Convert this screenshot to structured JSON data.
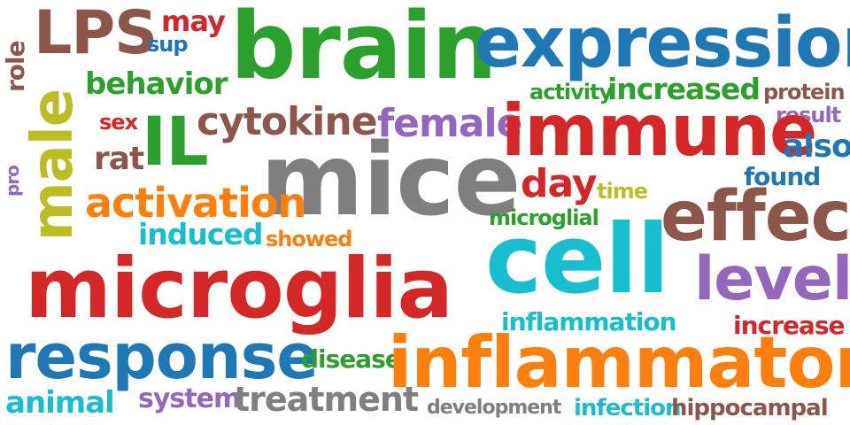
{
  "colors": {
    "blue": "#1f77b4",
    "orange": "#ff7f0e",
    "green": "#2ca02c",
    "red": "#d62728",
    "purple": "#9467bd",
    "brown": "#8c564b",
    "pink": "#e377c2",
    "gray": "#7f7f7f",
    "olive": "#bcbd22",
    "cyan": "#17becf"
  },
  "words": [
    {
      "text": "brain",
      "color": "green"
    },
    {
      "text": "expression",
      "color": "blue"
    },
    {
      "text": "LPS",
      "color": "brown"
    },
    {
      "text": "may",
      "color": "red"
    },
    {
      "text": "sup",
      "color": "blue"
    },
    {
      "text": "role",
      "color": "brown"
    },
    {
      "text": "behavior",
      "color": "green"
    },
    {
      "text": "activity",
      "color": "green"
    },
    {
      "text": "increased",
      "color": "green"
    },
    {
      "text": "protein",
      "color": "brown"
    },
    {
      "text": "result",
      "color": "purple"
    },
    {
      "text": "male",
      "color": "olive"
    },
    {
      "text": "sex",
      "color": "red"
    },
    {
      "text": "IL",
      "color": "green"
    },
    {
      "text": "cytokine",
      "color": "brown"
    },
    {
      "text": "female",
      "color": "purple"
    },
    {
      "text": "immune",
      "color": "red"
    },
    {
      "text": "also",
      "color": "blue"
    },
    {
      "text": "rat",
      "color": "brown"
    },
    {
      "text": "mice",
      "color": "gray"
    },
    {
      "text": "found",
      "color": "blue"
    },
    {
      "text": "pro",
      "color": "purple"
    },
    {
      "text": "day",
      "color": "red"
    },
    {
      "text": "time",
      "color": "olive"
    },
    {
      "text": "activation",
      "color": "orange"
    },
    {
      "text": "effect",
      "color": "brown"
    },
    {
      "text": "microglial",
      "color": "green"
    },
    {
      "text": "induced",
      "color": "cyan"
    },
    {
      "text": "showed",
      "color": "orange"
    },
    {
      "text": "cell",
      "color": "cyan"
    },
    {
      "text": "microglia",
      "color": "red"
    },
    {
      "text": "level",
      "color": "purple"
    },
    {
      "text": "inflammation",
      "color": "cyan"
    },
    {
      "text": "increase",
      "color": "red"
    },
    {
      "text": "response",
      "color": "blue"
    },
    {
      "text": "disease",
      "color": "green"
    },
    {
      "text": "inflammatory",
      "color": "orange"
    },
    {
      "text": "animal",
      "color": "cyan"
    },
    {
      "text": "system",
      "color": "purple"
    },
    {
      "text": "treatment",
      "color": "gray"
    },
    {
      "text": "development",
      "color": "gray"
    },
    {
      "text": "infection",
      "color": "cyan"
    },
    {
      "text": "hippocampal",
      "color": "brown"
    }
  ]
}
